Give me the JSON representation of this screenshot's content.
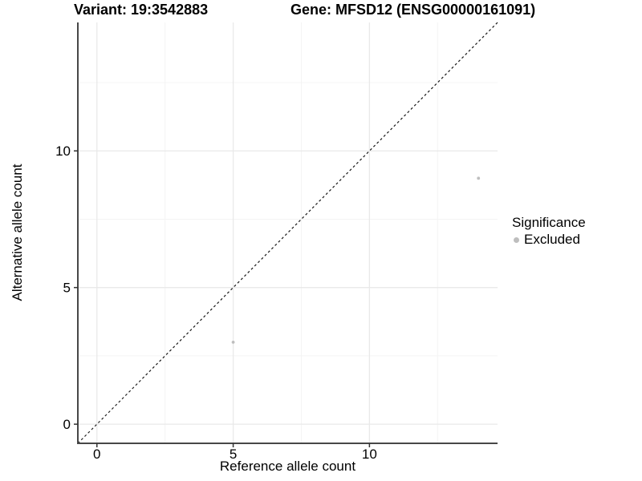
{
  "header": {
    "variant_title": "Variant: 19:3542883",
    "gene_title": "Gene: MFSD12 (ENSG00000161091)"
  },
  "legend": {
    "title": "Significance",
    "items": [
      {
        "label": "Excluded",
        "color": "#bebebe"
      }
    ]
  },
  "chart_data": {
    "type": "scatter",
    "titles": [
      "Variant: 19:3542883",
      "Gene: MFSD12 (ENSG00000161091)"
    ],
    "xlabel": "Reference allele count",
    "ylabel": "Alternative allele count",
    "xlim": [
      -0.7,
      14.7
    ],
    "ylim": [
      -0.7,
      14.7
    ],
    "x_ticks": [
      0,
      5,
      10
    ],
    "y_ticks": [
      0,
      5,
      10
    ],
    "x_minor_gridlines": [
      2.5,
      7.5,
      12.5
    ],
    "y_minor_gridlines": [
      2.5,
      7.5,
      12.5
    ],
    "grid": "major and minor light-grey gridlines on white panel",
    "legend_position": "right-middle",
    "series": [
      {
        "name": "Excluded",
        "color": "#bebebe",
        "points": [
          {
            "x": 5,
            "y": 3
          },
          {
            "x": 14,
            "y": 9
          }
        ]
      }
    ],
    "reference_line": {
      "kind": "identity y=x",
      "style": "dashed",
      "color": "#1a1a1a",
      "from": [
        -0.7,
        -0.7
      ],
      "to": [
        14.7,
        14.7
      ]
    }
  },
  "style": {
    "major_grid_color": "#e9e9e9",
    "minor_grid_color": "#f4f4f4",
    "axis_line_color": "#474747",
    "tick_color": "#333333",
    "point_radius": 1.9,
    "background": "#ffffff"
  }
}
